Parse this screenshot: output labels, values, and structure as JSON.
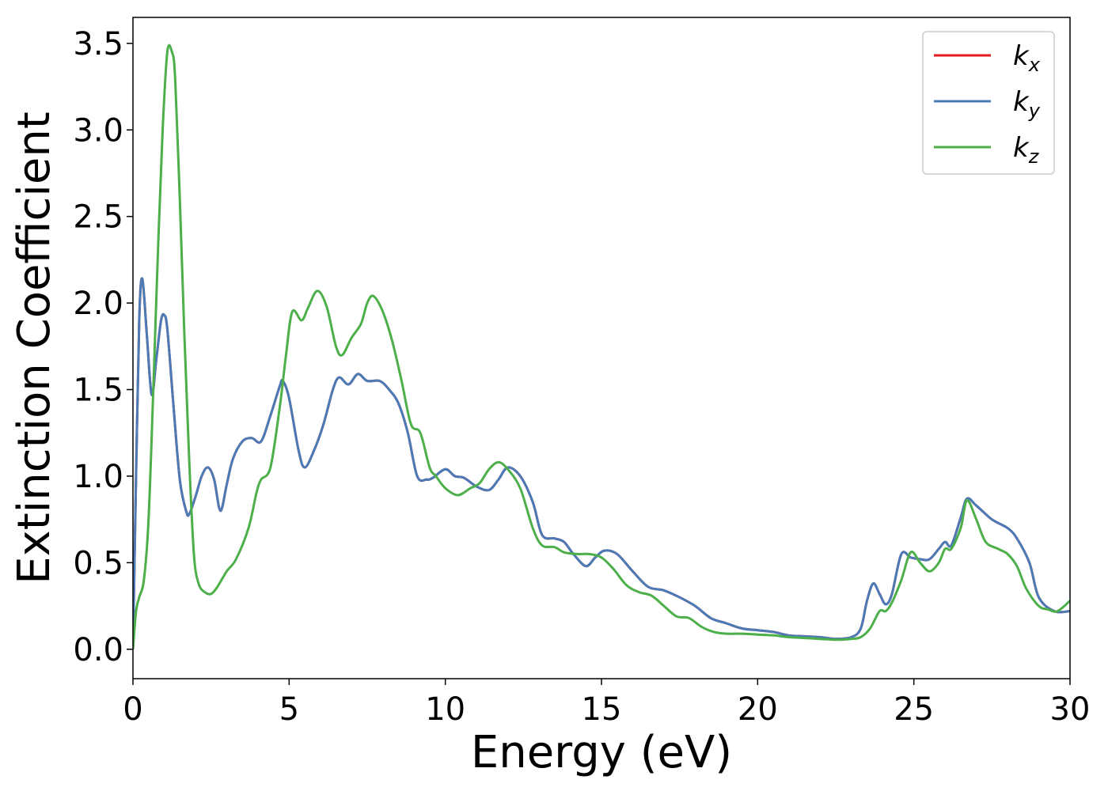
{
  "chart_data": {
    "type": "line",
    "xlabel": "Energy (eV)",
    "ylabel": "Extinction Coefficient",
    "xlim": [
      0,
      30
    ],
    "ylim": [
      -0.17,
      3.65
    ],
    "xticks": [
      0,
      5,
      10,
      15,
      20,
      25,
      30
    ],
    "xtick_labels": [
      "0",
      "5",
      "10",
      "15",
      "20",
      "25",
      "30"
    ],
    "yticks": [
      0.0,
      0.5,
      1.0,
      1.5,
      2.0,
      2.5,
      3.0,
      3.5
    ],
    "ytick_labels": [
      "0.0",
      "0.5",
      "1.0",
      "1.5",
      "2.0",
      "2.5",
      "3.0",
      "3.5"
    ],
    "grid": false,
    "legend_position": "top-right",
    "series": [
      {
        "name": "k",
        "subscript": "x",
        "color": "#e41a1c",
        "x": [
          0,
          0.1,
          0.2,
          0.3,
          0.45,
          0.6,
          0.75,
          0.9,
          1.0,
          1.1,
          1.3,
          1.5,
          1.7,
          1.8,
          2.0,
          2.2,
          2.4,
          2.6,
          2.8,
          3.0,
          3.2,
          3.5,
          3.8,
          4.1,
          4.4,
          4.7,
          4.8,
          5.0,
          5.3,
          5.5,
          5.8,
          6.1,
          6.4,
          6.6,
          6.9,
          7.2,
          7.5,
          7.9,
          8.2,
          8.5,
          8.8,
          9.1,
          9.4,
          9.6,
          10.0,
          10.3,
          10.6,
          11.0,
          11.4,
          11.7,
          12.0,
          12.4,
          12.8,
          13.1,
          13.5,
          13.8,
          14.1,
          14.5,
          14.8,
          15.1,
          15.5,
          16.0,
          16.5,
          17.0,
          17.5,
          18.0,
          18.5,
          19.0,
          19.5,
          20.0,
          20.5,
          21.0,
          21.5,
          22.0,
          22.5,
          23.0,
          23.3,
          23.5,
          23.7,
          23.9,
          24.1,
          24.3,
          24.6,
          24.9,
          25.2,
          25.5,
          25.8,
          26.0,
          26.2,
          26.5,
          26.7,
          27.0,
          27.5,
          28.0,
          28.3,
          28.7,
          29.0,
          29.5,
          30.0
        ],
        "y": [
          0.0,
          1.0,
          1.9,
          2.14,
          1.8,
          1.47,
          1.68,
          1.9,
          1.93,
          1.85,
          1.4,
          0.98,
          0.8,
          0.78,
          0.88,
          1.0,
          1.05,
          0.98,
          0.8,
          0.95,
          1.1,
          1.2,
          1.22,
          1.2,
          1.35,
          1.52,
          1.55,
          1.45,
          1.15,
          1.05,
          1.15,
          1.3,
          1.5,
          1.57,
          1.53,
          1.59,
          1.55,
          1.55,
          1.5,
          1.42,
          1.25,
          1.0,
          0.98,
          0.99,
          1.04,
          1.0,
          0.99,
          0.94,
          0.92,
          0.98,
          1.05,
          1.0,
          0.85,
          0.66,
          0.64,
          0.62,
          0.55,
          0.48,
          0.53,
          0.57,
          0.55,
          0.45,
          0.36,
          0.34,
          0.3,
          0.25,
          0.18,
          0.15,
          0.12,
          0.11,
          0.1,
          0.08,
          0.075,
          0.07,
          0.06,
          0.07,
          0.12,
          0.28,
          0.38,
          0.32,
          0.26,
          0.32,
          0.55,
          0.53,
          0.52,
          0.52,
          0.58,
          0.62,
          0.6,
          0.76,
          0.87,
          0.83,
          0.75,
          0.7,
          0.64,
          0.5,
          0.3,
          0.22,
          0.22
        ]
      },
      {
        "name": "k",
        "subscript": "y",
        "color": "#4a7bb7",
        "x": [
          0,
          0.1,
          0.2,
          0.3,
          0.45,
          0.6,
          0.75,
          0.9,
          1.0,
          1.1,
          1.3,
          1.5,
          1.7,
          1.8,
          2.0,
          2.2,
          2.4,
          2.6,
          2.8,
          3.0,
          3.2,
          3.5,
          3.8,
          4.1,
          4.4,
          4.7,
          4.8,
          5.0,
          5.3,
          5.5,
          5.8,
          6.1,
          6.4,
          6.6,
          6.9,
          7.2,
          7.5,
          7.9,
          8.2,
          8.5,
          8.8,
          9.1,
          9.4,
          9.6,
          10.0,
          10.3,
          10.6,
          11.0,
          11.4,
          11.7,
          12.0,
          12.4,
          12.8,
          13.1,
          13.5,
          13.8,
          14.1,
          14.5,
          14.8,
          15.1,
          15.5,
          16.0,
          16.5,
          17.0,
          17.5,
          18.0,
          18.5,
          19.0,
          19.5,
          20.0,
          20.5,
          21.0,
          21.5,
          22.0,
          22.5,
          23.0,
          23.3,
          23.5,
          23.7,
          23.9,
          24.1,
          24.3,
          24.6,
          24.9,
          25.2,
          25.5,
          25.8,
          26.0,
          26.2,
          26.5,
          26.7,
          27.0,
          27.5,
          28.0,
          28.3,
          28.7,
          29.0,
          29.5,
          30.0
        ],
        "y": [
          0.0,
          1.0,
          1.9,
          2.14,
          1.8,
          1.47,
          1.68,
          1.9,
          1.93,
          1.85,
          1.4,
          0.98,
          0.8,
          0.78,
          0.88,
          1.0,
          1.05,
          0.98,
          0.8,
          0.95,
          1.1,
          1.2,
          1.22,
          1.2,
          1.35,
          1.52,
          1.55,
          1.45,
          1.15,
          1.05,
          1.15,
          1.3,
          1.5,
          1.57,
          1.53,
          1.59,
          1.55,
          1.55,
          1.5,
          1.42,
          1.25,
          1.0,
          0.98,
          0.99,
          1.04,
          1.0,
          0.99,
          0.94,
          0.92,
          0.98,
          1.05,
          1.0,
          0.85,
          0.66,
          0.64,
          0.62,
          0.55,
          0.48,
          0.53,
          0.57,
          0.55,
          0.45,
          0.36,
          0.34,
          0.3,
          0.25,
          0.18,
          0.15,
          0.12,
          0.11,
          0.1,
          0.08,
          0.075,
          0.07,
          0.06,
          0.07,
          0.12,
          0.28,
          0.38,
          0.32,
          0.26,
          0.32,
          0.55,
          0.53,
          0.52,
          0.52,
          0.58,
          0.62,
          0.6,
          0.76,
          0.87,
          0.83,
          0.75,
          0.7,
          0.64,
          0.5,
          0.3,
          0.22,
          0.22
        ]
      },
      {
        "name": "k",
        "subscript": "z",
        "color": "#4daf4a",
        "x": [
          0,
          0.1,
          0.2,
          0.35,
          0.5,
          0.65,
          0.8,
          0.95,
          1.1,
          1.25,
          1.35,
          1.5,
          1.65,
          1.8,
          1.95,
          2.1,
          2.3,
          2.5,
          2.7,
          3.0,
          3.3,
          3.7,
          3.95,
          4.1,
          4.4,
          4.7,
          4.9,
          5.1,
          5.4,
          5.6,
          5.9,
          6.2,
          6.5,
          6.7,
          7.0,
          7.3,
          7.5,
          7.7,
          8.0,
          8.3,
          8.6,
          8.9,
          9.2,
          9.5,
          9.7,
          10.0,
          10.4,
          10.8,
          11.1,
          11.4,
          11.7,
          12.0,
          12.4,
          12.8,
          13.1,
          13.5,
          13.8,
          14.2,
          14.6,
          15.0,
          15.4,
          15.8,
          16.2,
          16.6,
          17.0,
          17.4,
          17.8,
          18.2,
          18.6,
          19.0,
          19.5,
          20.0,
          20.5,
          21.0,
          21.5,
          22.0,
          22.5,
          23.0,
          23.3,
          23.6,
          23.9,
          24.1,
          24.3,
          24.6,
          24.9,
          25.2,
          25.5,
          25.8,
          26.0,
          26.2,
          26.5,
          26.7,
          27.0,
          27.3,
          27.7,
          28.0,
          28.3,
          28.6,
          29.0,
          29.3,
          29.6,
          30.0
        ],
        "y": [
          0.0,
          0.22,
          0.3,
          0.4,
          0.75,
          1.5,
          2.3,
          3.0,
          3.45,
          3.45,
          3.3,
          2.6,
          1.8,
          1.1,
          0.55,
          0.38,
          0.33,
          0.32,
          0.36,
          0.45,
          0.52,
          0.7,
          0.9,
          0.98,
          1.05,
          1.4,
          1.7,
          1.95,
          1.9,
          1.97,
          2.07,
          1.98,
          1.75,
          1.7,
          1.8,
          1.88,
          2.0,
          2.04,
          1.95,
          1.78,
          1.55,
          1.3,
          1.25,
          1.05,
          1.0,
          0.93,
          0.89,
          0.93,
          0.96,
          1.04,
          1.08,
          1.04,
          0.93,
          0.7,
          0.6,
          0.59,
          0.56,
          0.55,
          0.55,
          0.53,
          0.46,
          0.37,
          0.33,
          0.31,
          0.25,
          0.19,
          0.18,
          0.13,
          0.1,
          0.09,
          0.09,
          0.085,
          0.08,
          0.07,
          0.065,
          0.06,
          0.055,
          0.06,
          0.07,
          0.12,
          0.22,
          0.22,
          0.27,
          0.4,
          0.56,
          0.5,
          0.45,
          0.5,
          0.58,
          0.58,
          0.7,
          0.86,
          0.75,
          0.62,
          0.58,
          0.55,
          0.48,
          0.35,
          0.25,
          0.23,
          0.22,
          0.28
        ]
      }
    ]
  }
}
